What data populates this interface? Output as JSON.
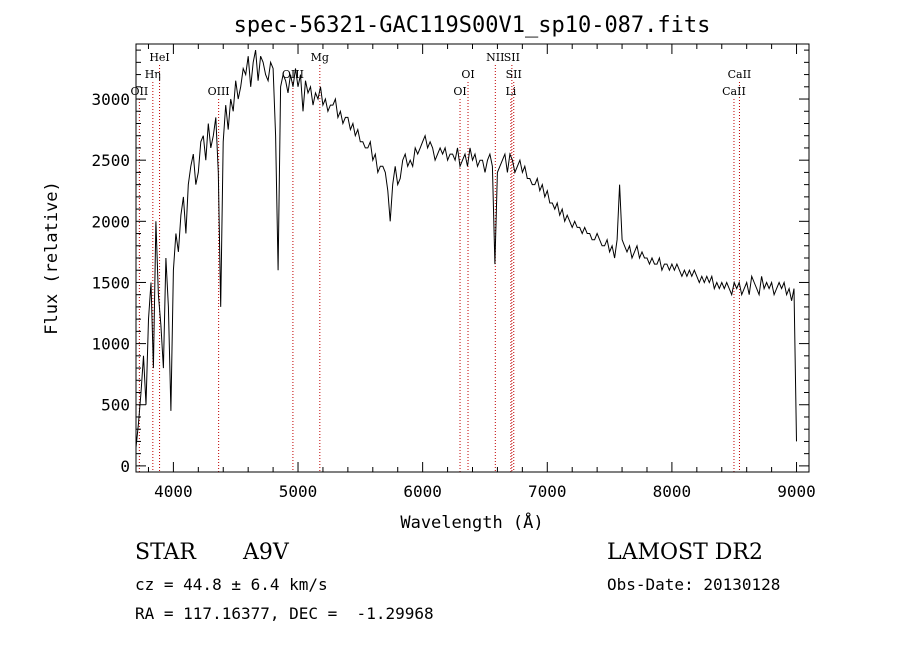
{
  "chart_data": {
    "type": "line",
    "title": "spec-56321-GAC119S00V1_sp10-087.fits",
    "xlabel": "Wavelength (Å)",
    "ylabel": "Flux (relative)",
    "xlim": [
      3700,
      9100
    ],
    "ylim": [
      -50,
      3450
    ],
    "xticks": [
      "4000",
      "5000",
      "6000",
      "7000",
      "8000",
      "9000"
    ],
    "yticks": [
      "0",
      "500",
      "1000",
      "1500",
      "2000",
      "2500",
      "3000"
    ],
    "series": [
      {
        "x": [
          3700,
          3720,
          3740,
          3760,
          3780,
          3800,
          3820,
          3840,
          3860,
          3880,
          3900,
          3920,
          3940,
          3960,
          3980,
          4000,
          4020,
          4040,
          4060,
          4080,
          4100,
          4120,
          4140,
          4160,
          4180,
          4200,
          4220,
          4240,
          4260,
          4280,
          4300,
          4320,
          4340,
          4360,
          4380,
          4400,
          4420,
          4440,
          4460,
          4480,
          4500,
          4520,
          4540,
          4560,
          4580,
          4600,
          4620,
          4640,
          4660,
          4680,
          4700,
          4720,
          4740,
          4760,
          4780,
          4800,
          4820,
          4840,
          4860,
          4880,
          4900,
          4920,
          4940,
          4960,
          4980,
          5000,
          5020,
          5040,
          5060,
          5080,
          5100,
          5120,
          5140,
          5160,
          5180,
          5200,
          5220,
          5240,
          5260,
          5280,
          5300,
          5320,
          5340,
          5360,
          5380,
          5400,
          5420,
          5440,
          5460,
          5480,
          5500,
          5520,
          5540,
          5560,
          5580,
          5600,
          5620,
          5640,
          5660,
          5680,
          5700,
          5720,
          5740,
          5760,
          5780,
          5800,
          5820,
          5840,
          5860,
          5880,
          5900,
          5920,
          5940,
          5960,
          5980,
          6000,
          6020,
          6040,
          6060,
          6080,
          6100,
          6120,
          6140,
          6160,
          6180,
          6200,
          6220,
          6240,
          6260,
          6280,
          6300,
          6320,
          6340,
          6360,
          6380,
          6400,
          6420,
          6440,
          6460,
          6480,
          6500,
          6520,
          6540,
          6560,
          6580,
          6600,
          6620,
          6640,
          6660,
          6680,
          6700,
          6720,
          6740,
          6760,
          6780,
          6800,
          6820,
          6840,
          6860,
          6880,
          6900,
          6920,
          6940,
          6960,
          6980,
          7000,
          7020,
          7040,
          7060,
          7080,
          7100,
          7120,
          7140,
          7160,
          7180,
          7200,
          7220,
          7240,
          7260,
          7280,
          7300,
          7320,
          7340,
          7360,
          7380,
          7400,
          7420,
          7440,
          7460,
          7480,
          7500,
          7520,
          7540,
          7560,
          7580,
          7600,
          7620,
          7640,
          7660,
          7680,
          7700,
          7720,
          7740,
          7760,
          7780,
          7800,
          7820,
          7840,
          7860,
          7880,
          7900,
          7920,
          7940,
          7960,
          7980,
          8000,
          8020,
          8040,
          8060,
          8080,
          8100,
          8120,
          8140,
          8160,
          8180,
          8200,
          8220,
          8240,
          8260,
          8280,
          8300,
          8320,
          8340,
          8360,
          8380,
          8400,
          8420,
          8440,
          8460,
          8480,
          8500,
          8520,
          8540,
          8560,
          8580,
          8600,
          8620,
          8640,
          8660,
          8680,
          8700,
          8720,
          8740,
          8760,
          8780,
          8800,
          8820,
          8840,
          8860,
          8880,
          8900,
          8920,
          8940,
          8960,
          8980,
          9000
        ],
        "y": [
          150,
          350,
          600,
          900,
          500,
          1200,
          1500,
          800,
          2000,
          1400,
          1150,
          800,
          1700,
          1300,
          450,
          1600,
          1900,
          1750,
          2050,
          2200,
          1900,
          2300,
          2450,
          2550,
          2300,
          2400,
          2650,
          2700,
          2500,
          2800,
          2600,
          2700,
          2850,
          2400,
          1300,
          2650,
          2950,
          2750,
          3000,
          2900,
          3150,
          3000,
          3100,
          3250,
          3200,
          3350,
          3100,
          3300,
          3400,
          3150,
          3350,
          3300,
          3200,
          3150,
          3300,
          3250,
          2700,
          1600,
          3100,
          3200,
          3150,
          3050,
          3200,
          3100,
          3250,
          3100,
          3200,
          2900,
          3150,
          3050,
          3100,
          2950,
          3050,
          3000,
          3100,
          2950,
          3000,
          2900,
          2950,
          2950,
          3000,
          2850,
          2900,
          2800,
          2850,
          2850,
          2750,
          2800,
          2700,
          2750,
          2650,
          2650,
          2600,
          2600,
          2650,
          2500,
          2550,
          2400,
          2450,
          2450,
          2400,
          2250,
          2000,
          2300,
          2450,
          2300,
          2350,
          2500,
          2550,
          2450,
          2500,
          2450,
          2600,
          2550,
          2600,
          2650,
          2700,
          2600,
          2650,
          2600,
          2500,
          2550,
          2600,
          2550,
          2600,
          2500,
          2550,
          2550,
          2500,
          2600,
          2450,
          2500,
          2550,
          2450,
          2600,
          2500,
          2550,
          2450,
          2500,
          2500,
          2400,
          2500,
          2550,
          2450,
          1650,
          2400,
          2450,
          2500,
          2550,
          2400,
          2550,
          2500,
          2400,
          2450,
          2500,
          2400,
          2450,
          2350,
          2350,
          2300,
          2300,
          2350,
          2250,
          2300,
          2200,
          2250,
          2150,
          2150,
          2100,
          2150,
          2050,
          2100,
          2000,
          2050,
          2000,
          1950,
          2000,
          1950,
          1950,
          1900,
          1950,
          1900,
          1900,
          1850,
          1850,
          1900,
          1850,
          1800,
          1800,
          1850,
          1750,
          1800,
          1700,
          1850,
          2300,
          1850,
          1800,
          1750,
          1800,
          1700,
          1750,
          1800,
          1700,
          1750,
          1700,
          1700,
          1650,
          1700,
          1650,
          1650,
          1700,
          1600,
          1650,
          1650,
          1600,
          1650,
          1600,
          1650,
          1600,
          1550,
          1600,
          1550,
          1600,
          1550,
          1600,
          1550,
          1500,
          1550,
          1500,
          1550,
          1500,
          1550,
          1450,
          1500,
          1450,
          1500,
          1450,
          1500,
          1450,
          1400,
          1500,
          1450,
          1500,
          1400,
          1450,
          1500,
          1400,
          1550,
          1500,
          1450,
          1400,
          1550,
          1450,
          1500,
          1450,
          1500,
          1400,
          1450,
          1500,
          1450,
          1500,
          1400,
          1450,
          1350,
          1450,
          200
        ]
      }
    ],
    "lines": [
      {
        "label": "OII",
        "x": 3727,
        "row": 3
      },
      {
        "label": "Hη",
        "x": 3835,
        "row": 2
      },
      {
        "label": "HeI",
        "x": 3889,
        "row": 1
      },
      {
        "label": "OIII",
        "x": 4363,
        "row": 3
      },
      {
        "label": "OIII",
        "x": 4959,
        "row": 2
      },
      {
        "label": "Mg",
        "x": 5175,
        "row": 1
      },
      {
        "label": "OI",
        "x": 6300,
        "row": 3
      },
      {
        "label": "OI",
        "x": 6364,
        "row": 2
      },
      {
        "label": "NII",
        "x": 6583,
        "row": 1
      },
      {
        "label": "SII",
        "x": 6716,
        "row": 1
      },
      {
        "label": "SII",
        "x": 6731,
        "row": 2
      },
      {
        "label": "Li",
        "x": 6708,
        "row": 3
      },
      {
        "label": "CaII",
        "x": 8498,
        "row": 3
      },
      {
        "label": "CaII",
        "x": 8542,
        "row": 2
      }
    ],
    "grid": false,
    "line_color": "#000000",
    "marker_color": "#c00000"
  },
  "info": {
    "star": "STAR",
    "class": "A9V",
    "survey": "LAMOST DR2",
    "cz": "cz = 44.8 ± 6.4 km/s",
    "obsdate": "Obs-Date: 20130128",
    "radec": "RA = 117.16377, DEC =  -1.29968"
  }
}
